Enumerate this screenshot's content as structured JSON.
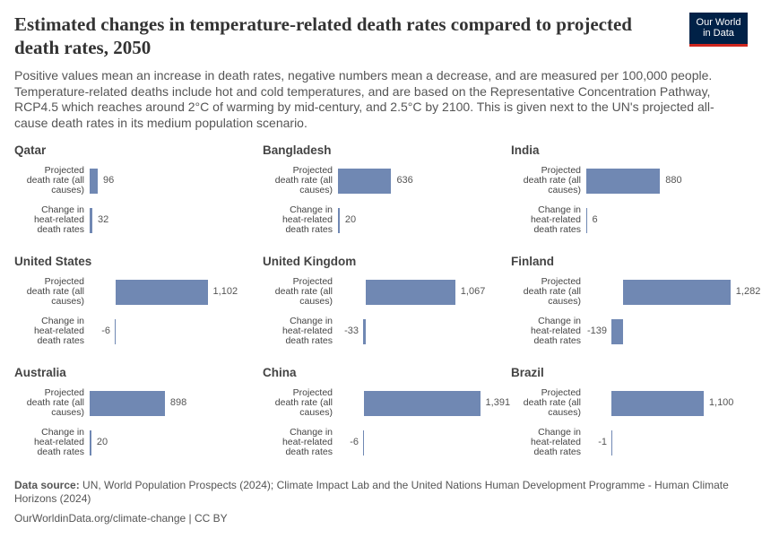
{
  "header": {
    "title": "Estimated changes in temperature-related death rates compared to projected death rates, 2050",
    "subtitle": "Positive values mean an increase in death rates, negative numbers mean a decrease, and are measured per 100,000 people. Temperature-related deaths include hot and cold temperatures, and are based on the Representative Concentration Pathway, RCP4.5 which reaches around 2°C of warming by mid-century, and 2.5°C by 2100. This is given next to the UN's projected all-cause death rates in its medium population scenario.",
    "logo": {
      "line1": "Our World",
      "line2": "in Data"
    }
  },
  "chart_data": [
    {
      "type": "bar",
      "title": "Qatar",
      "categories": [
        "Projected death rate (all causes)",
        "Change in heat-related death rates"
      ],
      "values": [
        96,
        32
      ],
      "value_labels": [
        "96",
        "32"
      ],
      "color": "#7088b3"
    },
    {
      "type": "bar",
      "title": "Bangladesh",
      "categories": [
        "Projected death rate (all causes)",
        "Change in heat-related death rates"
      ],
      "values": [
        636,
        20
      ],
      "value_labels": [
        "636",
        "20"
      ],
      "color": "#7088b3"
    },
    {
      "type": "bar",
      "title": "India",
      "categories": [
        "Projected death rate (all causes)",
        "Change in heat-related death rates"
      ],
      "values": [
        880,
        6
      ],
      "value_labels": [
        "880",
        "6"
      ],
      "color": "#7088b3"
    },
    {
      "type": "bar",
      "title": "United States",
      "categories": [
        "Projected death rate (all causes)",
        "Change in heat-related death rates"
      ],
      "values": [
        1102,
        -6
      ],
      "value_labels": [
        "1,102",
        "-6"
      ],
      "color": "#7088b3"
    },
    {
      "type": "bar",
      "title": "United Kingdom",
      "categories": [
        "Projected death rate (all causes)",
        "Change in heat-related death rates"
      ],
      "values": [
        1067,
        -33
      ],
      "value_labels": [
        "1,067",
        "-33"
      ],
      "color": "#7088b3"
    },
    {
      "type": "bar",
      "title": "Finland",
      "categories": [
        "Projected death rate (all causes)",
        "Change in heat-related death rates"
      ],
      "values": [
        1282,
        -139
      ],
      "value_labels": [
        "1,282",
        "-139"
      ],
      "color": "#7088b3"
    },
    {
      "type": "bar",
      "title": "Australia",
      "categories": [
        "Projected death rate (all causes)",
        "Change in heat-related death rates"
      ],
      "values": [
        898,
        20
      ],
      "value_labels": [
        "898",
        "20"
      ],
      "color": "#7088b3"
    },
    {
      "type": "bar",
      "title": "China",
      "categories": [
        "Projected death rate (all causes)",
        "Change in heat-related death rates"
      ],
      "values": [
        1391,
        -6
      ],
      "value_labels": [
        "1,391",
        "-6"
      ],
      "color": "#7088b3"
    },
    {
      "type": "bar",
      "title": "Brazil",
      "categories": [
        "Projected death rate (all causes)",
        "Change in heat-related death rates"
      ],
      "values": [
        1100,
        -1
      ],
      "value_labels": [
        "1,100",
        "-1"
      ],
      "color": "#7088b3"
    }
  ],
  "footer": {
    "source_label": "Data source:",
    "source": "UN, World Population Prospects (2024); Climate Impact Lab and the United Nations Human Development Programme - Human Climate Horizons (2024)",
    "url": "OurWorldinData.org/climate-change | CC BY"
  }
}
